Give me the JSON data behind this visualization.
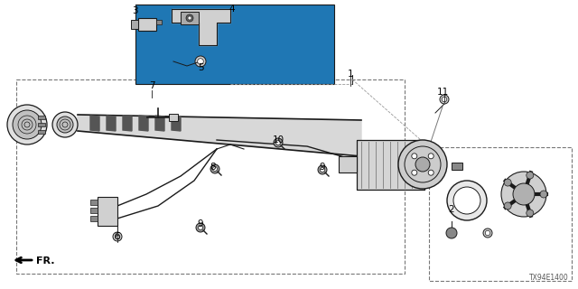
{
  "background_color": "#ffffff",
  "line_color": "#1a1a1a",
  "diagram_id": "TX94E1400",
  "labels": [
    [
      "1",
      388,
      82
    ],
    [
      "2",
      500,
      232
    ],
    [
      "3",
      149,
      12
    ],
    [
      "4",
      257,
      10
    ],
    [
      "5",
      222,
      75
    ],
    [
      "6",
      130,
      262
    ],
    [
      "7",
      168,
      95
    ],
    [
      "8",
      236,
      185
    ],
    [
      "9",
      357,
      185
    ],
    [
      "9",
      222,
      248
    ],
    [
      "10",
      308,
      155
    ],
    [
      "11",
      490,
      102
    ]
  ]
}
